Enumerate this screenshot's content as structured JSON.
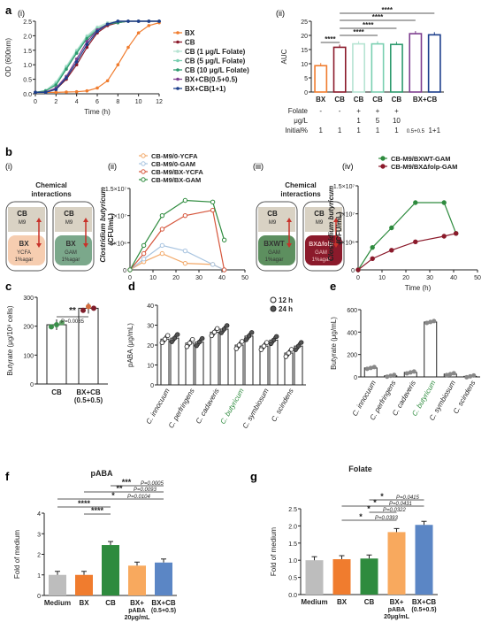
{
  "colors": {
    "BX": "#F07C2E",
    "CB": "#8B1A2B",
    "CB_folate": [
      "#B6E3D2",
      "#7ACFB1",
      "#2E9A6E"
    ],
    "mix05": "#7E3F8F",
    "mix11": "#1C3E8C",
    "med": "#BDBDBD",
    "cbGreen": "#2E8B3E",
    "lightOrange": "#F8A95E",
    "blueBar": "#5B86C5",
    "ycfa": "#F2A868",
    "gam": "#A8C4E0",
    "red": "#D6563C",
    "dark": "#222222"
  },
  "panels": {
    "a": "a",
    "b": "b",
    "c": "c",
    "d": "d",
    "e": "e",
    "f": "f",
    "g": "g",
    "ai": "(i)",
    "aii": "(ii)",
    "bi": "(i)",
    "bii": "(ii)",
    "biii": "(iii)",
    "biv": "(iv)"
  },
  "chart_data": [
    {
      "id": "a_i",
      "type": "line",
      "xlabel": "Time (h)",
      "ylabel": "OD (600nm)",
      "xlim": [
        0,
        12
      ],
      "ylim": [
        0,
        2.5
      ],
      "xticks": [
        "0",
        "2",
        "4",
        "6",
        "8",
        "10",
        "12"
      ],
      "yticks": [
        "0.0",
        "0.5",
        "1.0",
        "1.5",
        "2.0",
        "2.5"
      ],
      "x": [
        0,
        1,
        2,
        3,
        4,
        5,
        6,
        7,
        8,
        9,
        10,
        11,
        12
      ],
      "series": [
        {
          "name": "BX",
          "colorKey": "BX",
          "values": [
            0.05,
            0.05,
            0.05,
            0.06,
            0.07,
            0.1,
            0.2,
            0.45,
            1.0,
            1.6,
            2.1,
            2.35,
            2.45
          ]
        },
        {
          "name": "CB",
          "colorKey": "CB",
          "values": [
            0.05,
            0.07,
            0.15,
            0.5,
            1.0,
            1.6,
            2.1,
            2.35,
            2.45,
            2.5,
            2.5,
            2.5,
            2.5
          ]
        },
        {
          "name": "CB (1 μg/L Folate)",
          "colorKey": "CB_folate.0",
          "values": [
            0.05,
            0.12,
            0.4,
            0.95,
            1.5,
            2.0,
            2.3,
            2.45,
            2.5,
            2.5,
            2.5,
            2.5,
            2.5
          ]
        },
        {
          "name": "CB (5 μg/L Folate)",
          "colorKey": "CB_folate.1",
          "values": [
            0.05,
            0.1,
            0.35,
            0.9,
            1.45,
            1.95,
            2.25,
            2.4,
            2.5,
            2.5,
            2.5,
            2.5,
            2.5
          ]
        },
        {
          "name": "CB (10 μg/L Folate)",
          "colorKey": "CB_folate.2",
          "values": [
            0.05,
            0.1,
            0.3,
            0.85,
            1.4,
            1.9,
            2.2,
            2.4,
            2.45,
            2.5,
            2.5,
            2.5,
            2.5
          ]
        },
        {
          "name": "BX+CB(0.5+0.5)",
          "colorKey": "mix05",
          "values": [
            0.05,
            0.06,
            0.2,
            0.6,
            1.2,
            1.8,
            2.2,
            2.4,
            2.5,
            2.5,
            2.5,
            2.5,
            2.5
          ]
        },
        {
          "name": "BX+CB(1+1)",
          "colorKey": "mix11",
          "values": [
            0.05,
            0.05,
            0.15,
            0.55,
            1.1,
            1.7,
            2.15,
            2.4,
            2.5,
            2.5,
            2.5,
            2.5,
            2.5
          ]
        }
      ]
    },
    {
      "id": "a_ii",
      "type": "bar",
      "ylabel": "AUC",
      "ylim": [
        0,
        25
      ],
      "yticks": [
        "0",
        "5",
        "10",
        "15",
        "20",
        "25"
      ],
      "categories": [
        "BX",
        "CB",
        "CB",
        "CB",
        "CB",
        "BX+CB",
        ""
      ],
      "colorKeys": [
        "BX",
        "CB",
        "CB_folate.0",
        "CB_folate.1",
        "CB_folate.2",
        "mix05",
        "mix11"
      ],
      "values": [
        9.3,
        15.8,
        17.0,
        17.0,
        16.8,
        20.6,
        20.2
      ],
      "significance": [
        "****",
        "****",
        "****",
        "****",
        "****"
      ],
      "table": {
        "rows": [
          {
            "label": "Folate",
            "cells": [
              "-",
              "-",
              "+",
              "+",
              "+",
              "",
              ""
            ]
          },
          {
            "label": "μg/L",
            "cells": [
              "",
              "",
              "1",
              "5",
              "10",
              "",
              ""
            ]
          },
          {
            "label": "Initial%",
            "cells": [
              "1",
              "1",
              "1",
              "1",
              "1",
              "0.5+0.5",
              "1+1"
            ]
          }
        ]
      }
    },
    {
      "id": "b_i",
      "type": "diagram",
      "title": "Chemical interactions",
      "tubes": [
        {
          "top": "CB",
          "top2": "M9",
          "bottom": "BX",
          "bottom2": "YCFA",
          "bottom3": "1%agar"
        },
        {
          "top": "CB",
          "top2": "M9",
          "bottom": "BX",
          "bottom2": "GAM",
          "bottom3": "1%agar"
        }
      ]
    },
    {
      "id": "b_ii",
      "type": "line",
      "ylabel": "Clostridium butyricum (CFU/mL)",
      "xlim": [
        0,
        50
      ],
      "xticks": [
        "0",
        "10",
        "20",
        "30",
        "40",
        "50"
      ],
      "yticks": [
        "0",
        "5×10⁶",
        "1×10⁷",
        "1.5×10⁷"
      ],
      "ylim": [
        0,
        15000000
      ],
      "x": [
        0,
        6,
        14,
        24,
        36,
        41
      ],
      "series": [
        {
          "name": "CB-M9/0-YCFA",
          "colorKey": "ycfa",
          "values": [
            0,
            1500000,
            3000000,
            1200000,
            1000000,
            0
          ]
        },
        {
          "name": "CB-M9/0-GAM",
          "colorKey": "gam",
          "values": [
            0,
            2000000,
            4500000,
            3500000,
            1000000,
            0
          ]
        },
        {
          "name": "CB-M9/BX-YCFA",
          "colorKey": "red",
          "values": [
            0,
            3000000,
            7500000,
            10000000,
            11000000,
            0
          ]
        },
        {
          "name": "CB-M9/BX-GAM",
          "colorKey": "cbGreen",
          "values": [
            0,
            4500000,
            10000000,
            12800000,
            12500000,
            5500000
          ]
        }
      ]
    },
    {
      "id": "b_iii",
      "type": "diagram",
      "title": "Chemical interactions",
      "tubes": [
        {
          "top": "CB",
          "top2": "M9",
          "bottom": "BXWT",
          "bottom2": "GAM",
          "bottom3": "1%agar"
        },
        {
          "top": "CB",
          "top2": "M9",
          "bottom": "BXΔfolp",
          "bottom2": "GAM",
          "bottom3": "1%agar"
        }
      ]
    },
    {
      "id": "b_iv",
      "type": "line",
      "xlabel": "Time (h)",
      "ylabel": "Clostridium butyricum (CFU/mL)",
      "xlim": [
        0,
        50
      ],
      "xticks": [
        "0",
        "10",
        "20",
        "30",
        "40",
        "50"
      ],
      "yticks": [
        "0",
        "5×10⁶",
        "1×10⁷",
        "1.5×10⁷"
      ],
      "ylim": [
        0,
        15000000
      ],
      "x": [
        0,
        6,
        14,
        24,
        36,
        41
      ],
      "series": [
        {
          "name": "CB-M9/BXWT-GAM",
          "colorKey": "cbGreen",
          "values": [
            0,
            4000000,
            7500000,
            12000000,
            12000000,
            6500000
          ]
        },
        {
          "name": "CB-M9/BXΔfolp-GAM",
          "colorKey": "CB",
          "values": [
            0,
            2000000,
            3500000,
            5000000,
            6000000,
            6500000
          ]
        }
      ]
    },
    {
      "id": "c",
      "type": "bar",
      "ylabel": "Butyrate (μg/10⁹ cells)",
      "ylim": [
        0,
        300
      ],
      "yticks": [
        "0",
        "100",
        "200",
        "300"
      ],
      "categories": [
        "CB",
        "BX+CB\n(0.5+0.5)"
      ],
      "values": [
        205,
        262
      ],
      "significance": "**",
      "p": "P=0.0085"
    },
    {
      "id": "d",
      "type": "bar",
      "ylabel": "pABA (μg/mL)",
      "ylim": [
        0,
        40
      ],
      "yticks": [
        "0",
        "10",
        "20",
        "30",
        "40"
      ],
      "categories": [
        "C. innocuum",
        "C. perfringens",
        "C. cadaveris",
        "C. butyricum",
        "C. symbiosum",
        "C. scindens"
      ],
      "series": [
        {
          "name": "12 h",
          "values": [
            23,
            21,
            26.5,
            20,
            19.5,
            16
          ]
        },
        {
          "name": "24 h",
          "values": [
            23.5,
            21.5,
            28,
            24.5,
            22.5,
            19.5
          ]
        }
      ]
    },
    {
      "id": "e",
      "type": "bar",
      "ylabel": "Butyrate (μg/mL)",
      "ylim": [
        0,
        600
      ],
      "yticks": [
        "0",
        "200",
        "400",
        "600"
      ],
      "categories": [
        "C. innocuum",
        "C. perfringens",
        "C. cadaveris",
        "C. butyricum",
        "C. symbiosum",
        "C. scindens"
      ],
      "values": [
        80,
        10,
        40,
        490,
        25,
        5
      ]
    },
    {
      "id": "f",
      "type": "bar",
      "title": "pABA",
      "ylabel": "Fold of medium",
      "ylim": [
        0,
        4
      ],
      "yticks": [
        "0",
        "1",
        "2",
        "3",
        "4"
      ],
      "categories": [
        "Medium",
        "BX",
        "CB",
        "BX+\npABA\n20μg/mL",
        "BX+CB\n(0.5+0.5)"
      ],
      "colorKeys": [
        "med",
        "BX",
        "cbGreen",
        "lightOrange",
        "blueBar"
      ],
      "values": [
        1.0,
        1.0,
        2.45,
        1.45,
        1.6
      ],
      "significance": [
        {
          "stars": "***",
          "p": "P=0.0005"
        },
        {
          "stars": "**",
          "p": "P=0.0093"
        },
        {
          "stars": "*",
          "p": "P=0.0104"
        },
        {
          "stars": "****",
          "p": ""
        },
        {
          "stars": "****",
          "p": ""
        }
      ]
    },
    {
      "id": "g",
      "type": "bar",
      "title": "Folate",
      "ylabel": "Fold of medium",
      "ylim": [
        0,
        2.5
      ],
      "yticks": [
        "0.0",
        "0.5",
        "1.0",
        "1.5",
        "2.0",
        "2.5"
      ],
      "categories": [
        "Medium",
        "BX",
        "CB",
        "BX+\npABA\n20μg/mL",
        "BX+CB\n(0.5+0.5)"
      ],
      "colorKeys": [
        "med",
        "BX",
        "cbGreen",
        "lightOrange",
        "blueBar"
      ],
      "values": [
        1.0,
        1.03,
        1.05,
        1.82,
        2.03
      ],
      "significance": [
        {
          "stars": "*",
          "p": "P=0.0415"
        },
        {
          "stars": "*",
          "p": "P=0.0431"
        },
        {
          "stars": "*",
          "p": "P=0.0322"
        },
        {
          "stars": "*",
          "p": "P=0.0393"
        }
      ]
    }
  ]
}
